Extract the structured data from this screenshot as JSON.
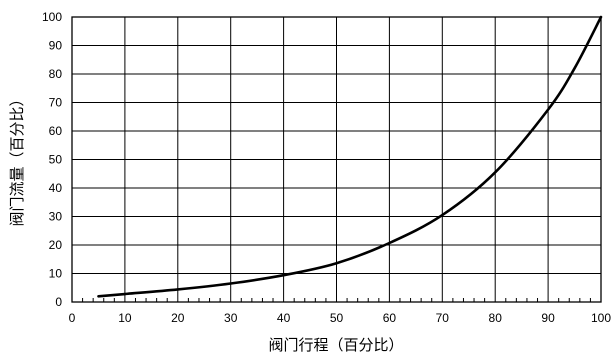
{
  "chart_data": {
    "type": "line",
    "xlabel": "阀门行程（百分比）",
    "ylabel": "阀门流量（百分比）",
    "xlim": [
      0,
      100
    ],
    "ylim": [
      0,
      100
    ],
    "x_ticks": [
      0,
      10,
      20,
      30,
      40,
      50,
      60,
      70,
      80,
      90,
      100
    ],
    "y_ticks": [
      0,
      10,
      20,
      30,
      40,
      50,
      60,
      70,
      80,
      90,
      100
    ],
    "grid": true,
    "legend": "none",
    "series": [
      {
        "color": "#000000",
        "x": [
          5,
          10,
          20,
          30,
          40,
          50,
          60,
          70,
          80,
          90,
          95,
          100
        ],
        "y": [
          2,
          2.8,
          4.4,
          6.5,
          9.4,
          13.6,
          20.7,
          30.5,
          45.5,
          67.5,
          82,
          100
        ]
      }
    ]
  }
}
